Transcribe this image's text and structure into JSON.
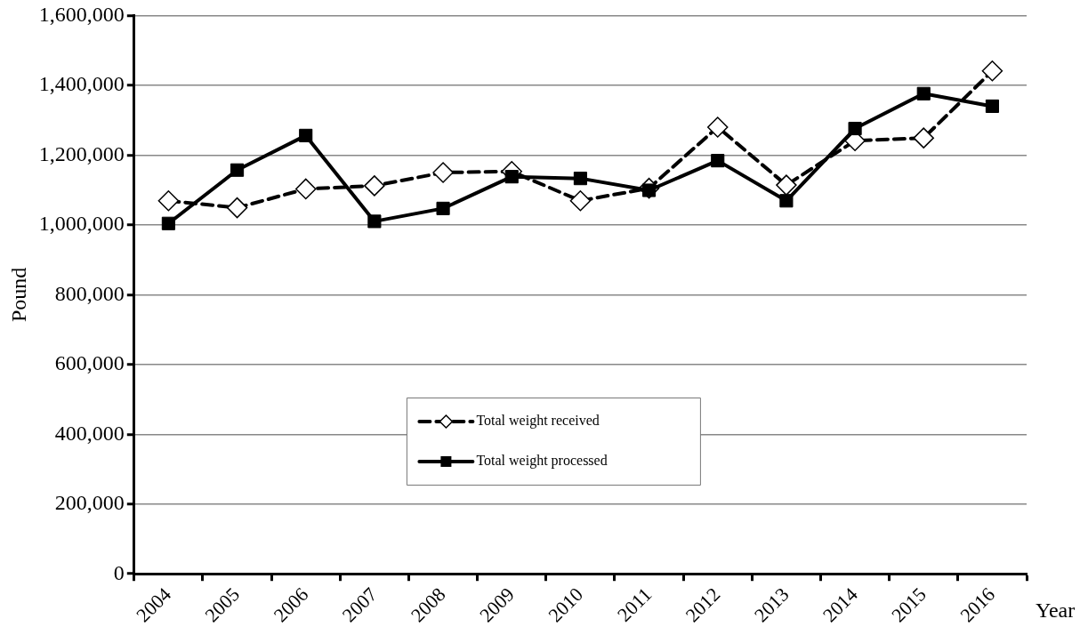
{
  "chart_data": {
    "type": "line",
    "xlabel": "Year",
    "ylabel": "Pound",
    "categories": [
      "2004",
      "2005",
      "2006",
      "2007",
      "2008",
      "2009",
      "2010",
      "2011",
      "2012",
      "2013",
      "2014",
      "2015",
      "2016"
    ],
    "series": [
      {
        "name": "Total weight received",
        "color": "#000000",
        "marker": "diamond",
        "line_style": "dashed",
        "values": [
          1069000,
          1049000,
          1103000,
          1112000,
          1150000,
          1153000,
          1069000,
          1105000,
          1280000,
          1114000,
          1241000,
          1249000,
          1441000
        ]
      },
      {
        "name": "Total weight processed",
        "color": "#000000",
        "marker": "square",
        "line_style": "solid",
        "values": [
          1004000,
          1157000,
          1256000,
          1010000,
          1047000,
          1138000,
          1133000,
          1099000,
          1184000,
          1069000,
          1276000,
          1376000,
          1340000
        ]
      }
    ],
    "ylim": [
      0,
      1600000
    ],
    "yticks": [
      {
        "value": 0,
        "label": "0"
      },
      {
        "value": 200000,
        "label": "200,000"
      },
      {
        "value": 400000,
        "label": "400,000"
      },
      {
        "value": 600000,
        "label": "600,000"
      },
      {
        "value": 800000,
        "label": "800,000"
      },
      {
        "value": 1000000,
        "label": "1,000,000"
      },
      {
        "value": 1200000,
        "label": "1,200,000"
      },
      {
        "value": 1400000,
        "label": "1,400,000"
      },
      {
        "value": 1600000,
        "label": "1,600,000"
      }
    ],
    "grid": "y",
    "legend": "bottom"
  }
}
